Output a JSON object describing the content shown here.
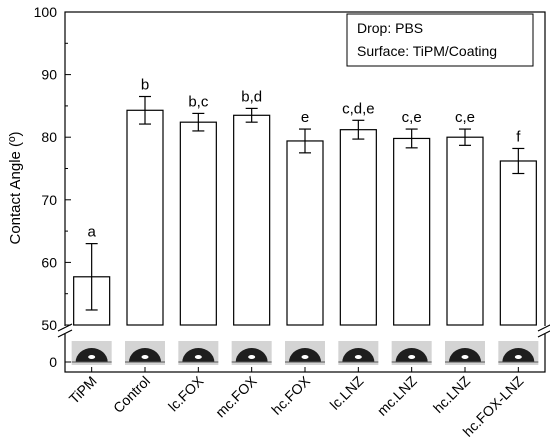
{
  "chart_data": {
    "type": "bar",
    "ylabel": "Contact Angle (º)",
    "ylim": [
      50,
      100
    ],
    "yticks": [
      50,
      60,
      70,
      80,
      90,
      100
    ],
    "broken_axis": {
      "lower_tick": 0,
      "break_between": [
        0,
        50
      ]
    },
    "categories": [
      "TiPM",
      "Control",
      "lc.FOX",
      "mc.FOX",
      "hc.FOX",
      "lc.LNZ",
      "mc.LNZ",
      "hc.LNZ",
      "hc.FOX-LNZ"
    ],
    "values": [
      57.7,
      84.3,
      82.4,
      83.5,
      79.4,
      81.2,
      79.8,
      80.0,
      76.2
    ],
    "errors": [
      5.3,
      2.2,
      1.4,
      1.1,
      1.9,
      1.5,
      1.5,
      1.3,
      2.0
    ],
    "significance_letters": [
      "a",
      "b",
      "b,c",
      "b,d",
      "e",
      "c,d,e",
      "c,e",
      "c,e",
      "f"
    ],
    "legend": {
      "position": "top-right",
      "lines": [
        "Drop: PBS",
        "Surface: TiPM/Coating"
      ]
    },
    "droplet_images": true
  }
}
